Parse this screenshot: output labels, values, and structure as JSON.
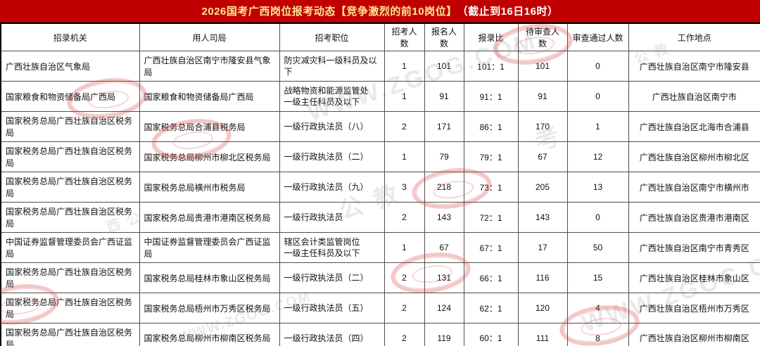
{
  "title": {
    "main": "2026国考广西岗位报考动态【竞争激烈的前10岗位】",
    "suffix": "（截止到16日16时）",
    "bg_color": "#c00000",
    "main_color": "#ffe793",
    "suffix_color": "#ffffff"
  },
  "table": {
    "headers": [
      "招录机关",
      "用人司局",
      "招考职位",
      "招考人数",
      "报名人数",
      "报录比",
      "待审查人数",
      "审查通过人数",
      "工作地点"
    ],
    "rows": [
      [
        "广西壮族自治区气象局",
        "广西壮族自治区南宁市隆安县气象局",
        "防灾减灾科一级科员及以下",
        "1",
        "101",
        "101：1",
        "101",
        "0",
        "广西壮族自治区南宁市隆安县"
      ],
      [
        "国家粮食和物资储备局广西局",
        "国家粮食和物资储备局广西局",
        "战略物资和能源监管处\n一级主任科员及以下",
        "1",
        "91",
        "91：1",
        "91",
        "0",
        "广西壮族自治区南宁市"
      ],
      [
        "国家税务总局广西壮族自治区税务局",
        "国家税务总局合浦县税务局",
        "一级行政执法员（八）",
        "2",
        "171",
        "86：1",
        "170",
        "1",
        "广西壮族自治区北海市合浦县"
      ],
      [
        "国家税务总局广西壮族自治区税务局",
        "国家税务总局柳州市柳北区税务局",
        "一级行政执法员（二）",
        "1",
        "79",
        "79：1",
        "67",
        "12",
        "广西壮族自治区柳州市柳北区"
      ],
      [
        "国家税务总局广西壮族自治区税务局",
        "国家税务总局横州市税务局",
        "一级行政执法员（九）",
        "3",
        "218",
        "73：1",
        "205",
        "13",
        "广西壮族自治区南宁市横州市"
      ],
      [
        "国家税务总局广西壮族自治区税务局",
        "国家税务总局贵港市港南区税务局",
        "一级行政执法员",
        "2",
        "143",
        "72：1",
        "143",
        "0",
        "广西壮族自治区贵港市港南区"
      ],
      [
        "中国证券监督管理委员会广西证监局",
        "中国证券监督管理委员会广西证监局",
        "辖区会计类监管岗位\n一级主任科员及以下",
        "1",
        "67",
        "67：1",
        "17",
        "50",
        "广西壮族自治区南宁市青秀区"
      ],
      [
        "国家税务总局广西壮族自治区税务局",
        "国家税务总局桂林市象山区税务局",
        "一级行政执法员（二）",
        "2",
        "131",
        "66：1",
        "116",
        "15",
        "广西壮族自治区桂林市象山区"
      ],
      [
        "国家税务总局广西壮族自治区税务局",
        "国家税务总局梧州市万秀区税务局",
        "一级行政执法员（五）",
        "2",
        "124",
        "62：1",
        "120",
        "4",
        "广西壮族自治区梧州市万秀区"
      ],
      [
        "国家税务总局广西壮族自治区税务局",
        "国家税务总局柳州市柳南区税务局",
        "一级行政执法员（四）",
        "2",
        "119",
        "60：1",
        "111",
        "8",
        "广西壮族自治区柳州市柳南区"
      ]
    ]
  },
  "watermarks": {
    "texts": [
      "WWW.ZGOG.COM",
      "公 教",
      "考",
      "西 公"
    ]
  },
  "chart_data": {
    "type": "table",
    "title": "2026国考广西岗位报考动态【竞争激烈的前10岗位】（截止到16日16时）",
    "columns": [
      "招录机关",
      "用人司局",
      "招考职位",
      "招考人数",
      "报名人数",
      "报录比",
      "待审查人数",
      "审查通过人数",
      "工作地点"
    ],
    "rows": [
      [
        "广西壮族自治区气象局",
        "广西壮族自治区南宁市隆安县气象局",
        "防灾减灾科一级科员及以下",
        1,
        101,
        "101:1",
        101,
        0,
        "广西壮族自治区南宁市隆安县"
      ],
      [
        "国家粮食和物资储备局广西局",
        "国家粮食和物资储备局广西局",
        "战略物资和能源监管处一级主任科员及以下",
        1,
        91,
        "91:1",
        91,
        0,
        "广西壮族自治区南宁市"
      ],
      [
        "国家税务总局广西壮族自治区税务局",
        "国家税务总局合浦县税务局",
        "一级行政执法员（八）",
        2,
        171,
        "86:1",
        170,
        1,
        "广西壮族自治区北海市合浦县"
      ],
      [
        "国家税务总局广西壮族自治区税务局",
        "国家税务总局柳州市柳北区税务局",
        "一级行政执法员（二）",
        1,
        79,
        "79:1",
        67,
        12,
        "广西壮族自治区柳州市柳北区"
      ],
      [
        "国家税务总局广西壮族自治区税务局",
        "国家税务总局横州市税务局",
        "一级行政执法员（九）",
        3,
        218,
        "73:1",
        205,
        13,
        "广西壮族自治区南宁市横州市"
      ],
      [
        "国家税务总局广西壮族自治区税务局",
        "国家税务总局贵港市港南区税务局",
        "一级行政执法员",
        2,
        143,
        "72:1",
        143,
        0,
        "广西壮族自治区贵港市港南区"
      ],
      [
        "中国证券监督管理委员会广西证监局",
        "中国证券监督管理委员会广西证监局",
        "辖区会计类监管岗位一级主任科员及以下",
        1,
        67,
        "67:1",
        17,
        50,
        "广西壮族自治区南宁市青秀区"
      ],
      [
        "国家税务总局广西壮族自治区税务局",
        "国家税务总局桂林市象山区税务局",
        "一级行政执法员（二）",
        2,
        131,
        "66:1",
        116,
        15,
        "广西壮族自治区桂林市象山区"
      ],
      [
        "国家税务总局广西壮族自治区税务局",
        "国家税务总局梧州市万秀区税务局",
        "一级行政执法员（五）",
        2,
        124,
        "62:1",
        120,
        4,
        "广西壮族自治区梧州市万秀区"
      ],
      [
        "国家税务总局广西壮族自治区税务局",
        "国家税务总局柳州市柳南区税务局",
        "一级行政执法员（四）",
        2,
        119,
        "60:1",
        111,
        8,
        "广西壮族自治区柳州市柳南区"
      ]
    ]
  }
}
